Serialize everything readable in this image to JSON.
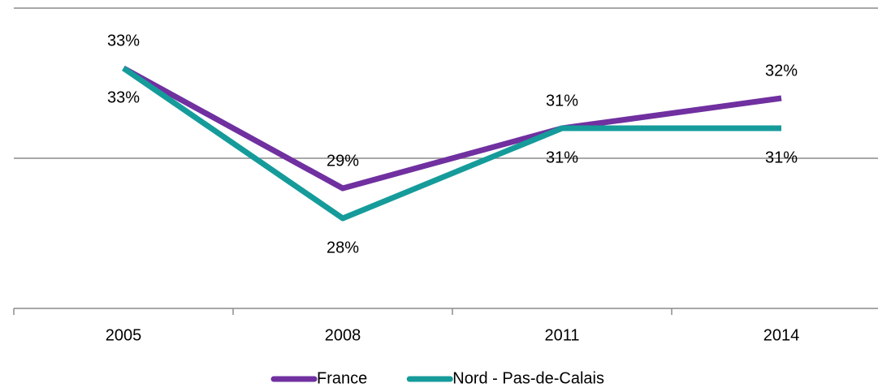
{
  "chart_data": {
    "type": "line",
    "categories": [
      "2005",
      "2008",
      "2011",
      "2014"
    ],
    "series": [
      {
        "name": "France",
        "color": "#7030a0",
        "values": [
          33,
          29,
          31,
          32
        ],
        "value_labels": [
          "33%",
          "29%",
          "31%",
          "32%"
        ]
      },
      {
        "name": "Nord - Pas-de-Calais",
        "color": "#169b9b",
        "values": [
          33,
          28,
          31,
          31
        ],
        "value_labels": [
          "33%",
          "28%",
          "31%",
          "31%"
        ]
      }
    ],
    "ylim": [
      25,
      35
    ],
    "yticks": [
      25,
      30,
      35
    ],
    "grid": true
  }
}
